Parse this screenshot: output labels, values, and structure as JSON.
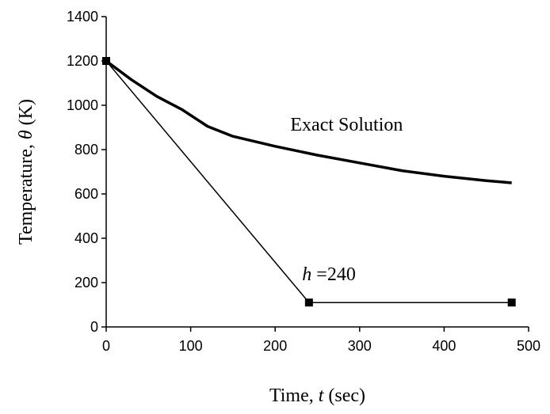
{
  "chart_data": {
    "type": "line",
    "title": "",
    "xlabel": {
      "prefix": "Time, ",
      "var": "t",
      "suffix": " (sec)"
    },
    "ylabel": {
      "prefix": "Temperature, ",
      "var": "θ",
      "suffix": " (K)"
    },
    "xlim": [
      0,
      500
    ],
    "ylim": [
      0,
      1400
    ],
    "xticks": [
      0,
      100,
      200,
      300,
      400,
      500
    ],
    "yticks": [
      0,
      200,
      400,
      600,
      800,
      1000,
      1200,
      1400
    ],
    "grid": false,
    "series": [
      {
        "name": "Exact Solution",
        "x": [
          0,
          30,
          60,
          90,
          120,
          150,
          200,
          250,
          300,
          350,
          400,
          450,
          480
        ],
        "y": [
          1200,
          1115,
          1040,
          980,
          905,
          860,
          815,
          775,
          740,
          705,
          680,
          660,
          650
        ]
      },
      {
        "name": "h =240",
        "x": [
          0,
          240,
          480
        ],
        "y": [
          1200,
          110,
          110
        ]
      }
    ],
    "annotations": [
      {
        "text": "Exact Solution"
      },
      {
        "var": "h",
        "text": " =240"
      }
    ]
  }
}
